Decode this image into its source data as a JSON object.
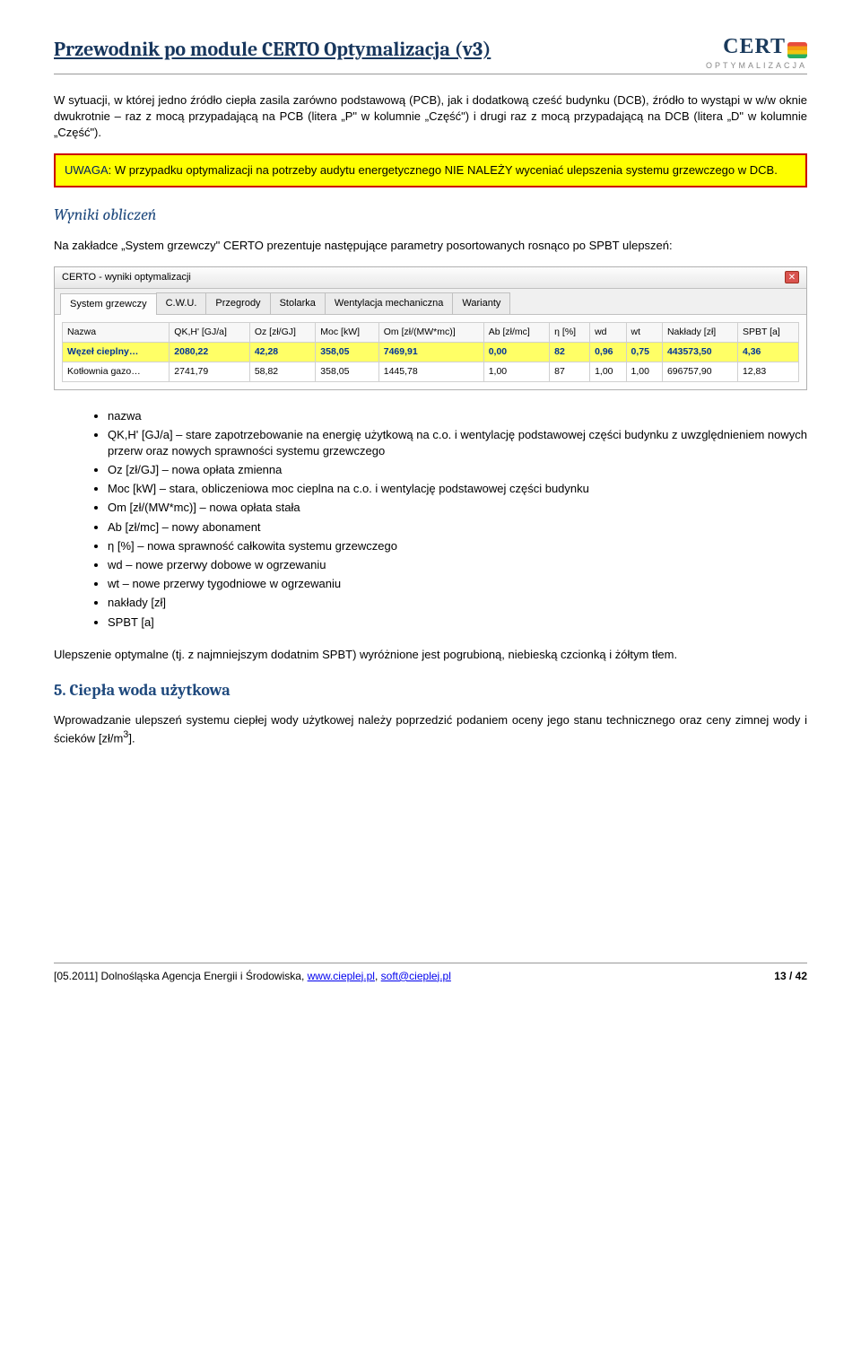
{
  "header": {
    "doc_title": "Przewodnik po module CERTO Optymalizacja (v3)",
    "logo_main": "CERT",
    "logo_sub": "OPTYMALIZACJA"
  },
  "body": {
    "p1": "W sytuacji, w której jedno źródło ciepła zasila zarówno podstawową (PCB), jak i dodatkową cześć budynku (DCB), źródło to wystąpi w w/w oknie dwukrotnie – raz z mocą przypadającą na PCB (litera „P\" w kolumnie „Część\") i drugi raz z mocą przypadającą na DCB (litera „D\" w kolumnie „Część\").",
    "warn_label": "UWAGA",
    "warn_text": ": W przypadku optymalizacji na potrzeby audytu energetycznego NIE NALEŻY wyceniać ulepszenia systemu grzewczego w DCB.",
    "sec_wyniki": "Wyniki obliczeń",
    "p2": "Na zakładce „System grzewczy\" CERTO prezentuje następujące parametry posortowanych rosnąco po SPBT ulepszeń:",
    "bullets": [
      "nazwa",
      "QK,H' [GJ/a] – stare zapotrzebowanie na energię użytkową na c.o. i wentylację podstawowej części budynku z uwzględnieniem nowych przerw oraz nowych sprawności systemu grzewczego",
      "Oz [zł/GJ] – nowa opłata zmienna",
      "Moc [kW] – stara, obliczeniowa moc cieplna na c.o. i wentylację podstawowej części budynku",
      "Om [zł/(MW*mc)] – nowa opłata stała",
      "Ab [zł/mc] – nowy abonament",
      "η [%] – nowa sprawność całkowita systemu grzewczego",
      "wd – nowe przerwy dobowe w ogrzewaniu",
      "wt – nowe przerwy tygodniowe w ogrzewaniu",
      "nakłady [zł]",
      "SPBT [a]"
    ],
    "p3": "Ulepszenie optymalne (tj. z najmniejszym dodatnim SPBT) wyróżnione jest pogrubioną, niebieską czcionką i żółtym tłem.",
    "h5": "5.  Ciepła woda użytkowa",
    "p4_a": "Wprowadzanie ulepszeń systemu ciepłej wody użytkowej należy poprzedzić podaniem oceny jego stanu technicznego oraz ceny zimnej wody i ścieków [zł/m",
    "p4_sup": "3",
    "p4_b": "]."
  },
  "screenshot": {
    "win_title": "CERTO - wyniki optymalizacji",
    "tabs": [
      "System grzewczy",
      "C.W.U.",
      "Przegrody",
      "Stolarka",
      "Wentylacja mechaniczna",
      "Warianty"
    ],
    "active_tab": 0,
    "columns": [
      "Nazwa",
      "QK,H' [GJ/a]",
      "Oz [zł/GJ]",
      "Moc [kW]",
      "Om [zł/(MW*mc)]",
      "Ab [zł/mc]",
      "η [%]",
      "wd",
      "wt",
      "Nakłady [zł]",
      "SPBT [a]"
    ],
    "rows": [
      {
        "highlight": true,
        "cells": [
          "Węzeł cieplny…",
          "2080,22",
          "42,28",
          "358,05",
          "7469,91",
          "0,00",
          "82",
          "0,96",
          "0,75",
          "443573,50",
          "4,36"
        ]
      },
      {
        "highlight": false,
        "cells": [
          "Kotłownia gazo…",
          "2741,79",
          "58,82",
          "358,05",
          "1445,78",
          "1,00",
          "87",
          "1,00",
          "1,00",
          "696757,90",
          "12,83"
        ]
      }
    ]
  },
  "footer": {
    "left_a": "[05.2011] Dolnośląska Agencja Energii i Środowiska, ",
    "link1": "www.cieplej.pl",
    "sep": ", ",
    "link2": "soft@cieplej.pl",
    "page": "13 / 42"
  }
}
